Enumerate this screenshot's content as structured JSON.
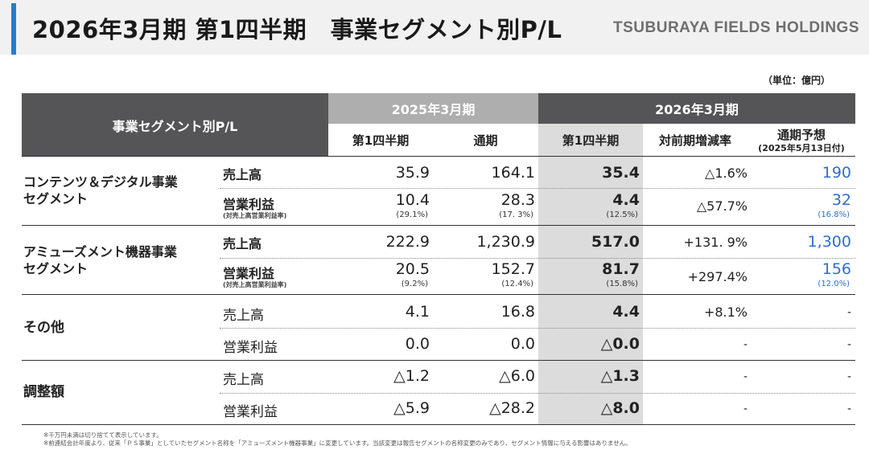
{
  "header": {
    "title": "2026年3月期 第1四半期　事業セグメント別P/L",
    "company": "TSUBURAYA FIELDS HOLDINGS",
    "accent_color": "#2e7bc3"
  },
  "unit": "（単位：億円）",
  "table": {
    "corner_label": "事業セグメント別P/L",
    "period_2025": "2025年3月期",
    "period_2026": "2026年3月期",
    "columns": {
      "q1_2025": "第1四半期",
      "full_2025": "通期",
      "q1_2026": "第1四半期",
      "yoy": "対前期増減率",
      "forecast": "通期予想",
      "forecast_note": "(2025年5月13日付)"
    },
    "rows": [
      {
        "segment": "コンテンツ＆デジタル事業\nセグメント",
        "items": [
          {
            "label": "売上高",
            "q1_2025": "35.9",
            "full_2025": "164.1",
            "q1_2026": "35.4",
            "yoy": "△1.6%",
            "forecast": "190"
          },
          {
            "label": "営業利益",
            "sub": "(対売上高営業利益率)",
            "q1_2025": "10.4",
            "q1_2025_pct": "(29.1%)",
            "full_2025": "28.3",
            "full_2025_pct": "(17. 3%)",
            "q1_2026": "4.4",
            "q1_2026_pct": "(12.5%)",
            "yoy": "△57.7%",
            "forecast": "32",
            "forecast_pct": "(16.8%)"
          }
        ]
      },
      {
        "segment": "アミューズメント機器事業\nセグメント",
        "items": [
          {
            "label": "売上高",
            "q1_2025": "222.9",
            "full_2025": "1,230.9",
            "q1_2026": "517.0",
            "yoy": "+131. 9%",
            "forecast": "1,300"
          },
          {
            "label": "営業利益",
            "sub": "(対売上高営業利益率)",
            "q1_2025": "20.5",
            "q1_2025_pct": "(9.2%)",
            "full_2025": "152.7",
            "full_2025_pct": "(12.4%)",
            "q1_2026": "81.7",
            "q1_2026_pct": "(15.8%)",
            "yoy": "+297.4%",
            "forecast": "156",
            "forecast_pct": "(12.0%)"
          }
        ]
      },
      {
        "segment": "その他",
        "items": [
          {
            "label": "売上高",
            "q1_2025": "4.1",
            "full_2025": "16.8",
            "q1_2026": "4.4",
            "yoy": "+8.1%",
            "forecast": "-"
          },
          {
            "label": "営業利益",
            "q1_2025": "0.0",
            "full_2025": "0.0",
            "q1_2026": "△0.0",
            "yoy": "-",
            "forecast": "-"
          }
        ]
      },
      {
        "segment": "調整額",
        "items": [
          {
            "label": "売上高",
            "q1_2025": "△1.2",
            "full_2025": "△6.0",
            "q1_2026": "△1.3",
            "yoy": "-",
            "forecast": "-"
          },
          {
            "label": "営業利益",
            "q1_2025": "△5.9",
            "full_2025": "△28.2",
            "q1_2026": "△8.0",
            "yoy": "-",
            "forecast": "-"
          }
        ]
      }
    ]
  },
  "footnotes": [
    "※千万円未満は切り捨てて表示しています。",
    "※前連結会計年度より、従来「ＰＳ事業」としていたセグメント名称を「アミューズメント機器事業」に変更しています。当該変更は報告セグメントの名称変更のみであり、セグメント情報に与える影響はありません。"
  ]
}
